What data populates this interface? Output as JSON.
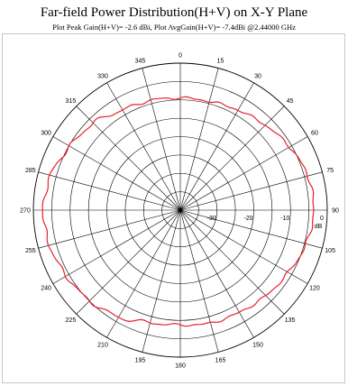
{
  "title": "Far-field Power Distribution(H+V) on X-Y Plane",
  "subtitle": "Plot Peak Gain(H+V)= -2.6 dBi, Plot AvgGain(H+V)= -7.4dBi @2.44000 GHz",
  "chart_data": {
    "type": "line",
    "coordinate_system": "polar",
    "title": "Far-field Power Distribution(H+V) on X-Y Plane",
    "angular_tick_labels": [
      "0",
      "15",
      "30",
      "45",
      "60",
      "75",
      "90",
      "105",
      "120",
      "135",
      "150",
      "165",
      "180",
      "195",
      "210",
      "225",
      "240",
      "255",
      "270",
      "285",
      "300",
      "315",
      "330",
      "345"
    ],
    "radial_tick_labels": [
      "-30",
      "-20",
      "-10",
      "0"
    ],
    "radial_unit": "dB",
    "r_range": [
      -40,
      0
    ],
    "angular_direction": "clockwise",
    "zero_angle": "top",
    "grid": true,
    "colors": {
      "grid": "#000000",
      "series": "#e8202a"
    },
    "series": [
      {
        "angles_deg": [
          0,
          15,
          30,
          45,
          60,
          75,
          90,
          105,
          120,
          135,
          150,
          165,
          180,
          195,
          210,
          225,
          240,
          255,
          270,
          285,
          300,
          315,
          330,
          345
        ],
        "values_db": [
          -9.5,
          -9.4,
          -8.6,
          -7.3,
          -5.6,
          -4.0,
          -3.6,
          -4.5,
          -6.1,
          -7.1,
          -7.9,
          -8.2,
          -8.8,
          -8.4,
          -6.4,
          -5.1,
          -4.2,
          -3.1,
          -2.6,
          -3.4,
          -5.3,
          -6.5,
          -8.6,
          -9.1
        ]
      }
    ]
  }
}
